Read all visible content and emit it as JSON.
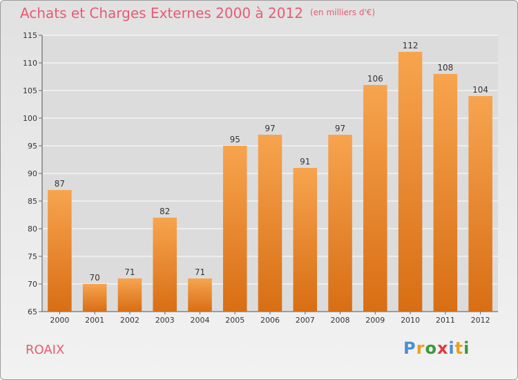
{
  "title": "Achats et Charges Externes 2000 à 2012",
  "subtitle": "(en milliers d'€)",
  "commune": "ROAIX",
  "logo": {
    "text": "Proxiti",
    "letter_colors": [
      "#4a8fd4",
      "#e8a020",
      "#3a9a3a",
      "#e03a3a",
      "#4a8fd4",
      "#e8a020",
      "#3a9a3a"
    ]
  },
  "colors": {
    "bar_top": "#f7a44f",
    "bar_bottom": "#d86e14",
    "text": "#333333",
    "grid": "#ffffff",
    "accent": "#e85a75"
  },
  "chart_data": {
    "type": "bar",
    "categories": [
      "2000",
      "2001",
      "2002",
      "2003",
      "2004",
      "2005",
      "2006",
      "2007",
      "2008",
      "2009",
      "2010",
      "2011",
      "2012"
    ],
    "values": [
      87,
      70,
      71,
      82,
      71,
      95,
      97,
      91,
      97,
      106,
      112,
      108,
      104
    ],
    "ylim": [
      65,
      115
    ],
    "yticks": [
      65,
      70,
      75,
      80,
      85,
      90,
      95,
      100,
      105,
      110,
      115
    ],
    "grid": true,
    "xlabel": "",
    "ylabel": ""
  }
}
